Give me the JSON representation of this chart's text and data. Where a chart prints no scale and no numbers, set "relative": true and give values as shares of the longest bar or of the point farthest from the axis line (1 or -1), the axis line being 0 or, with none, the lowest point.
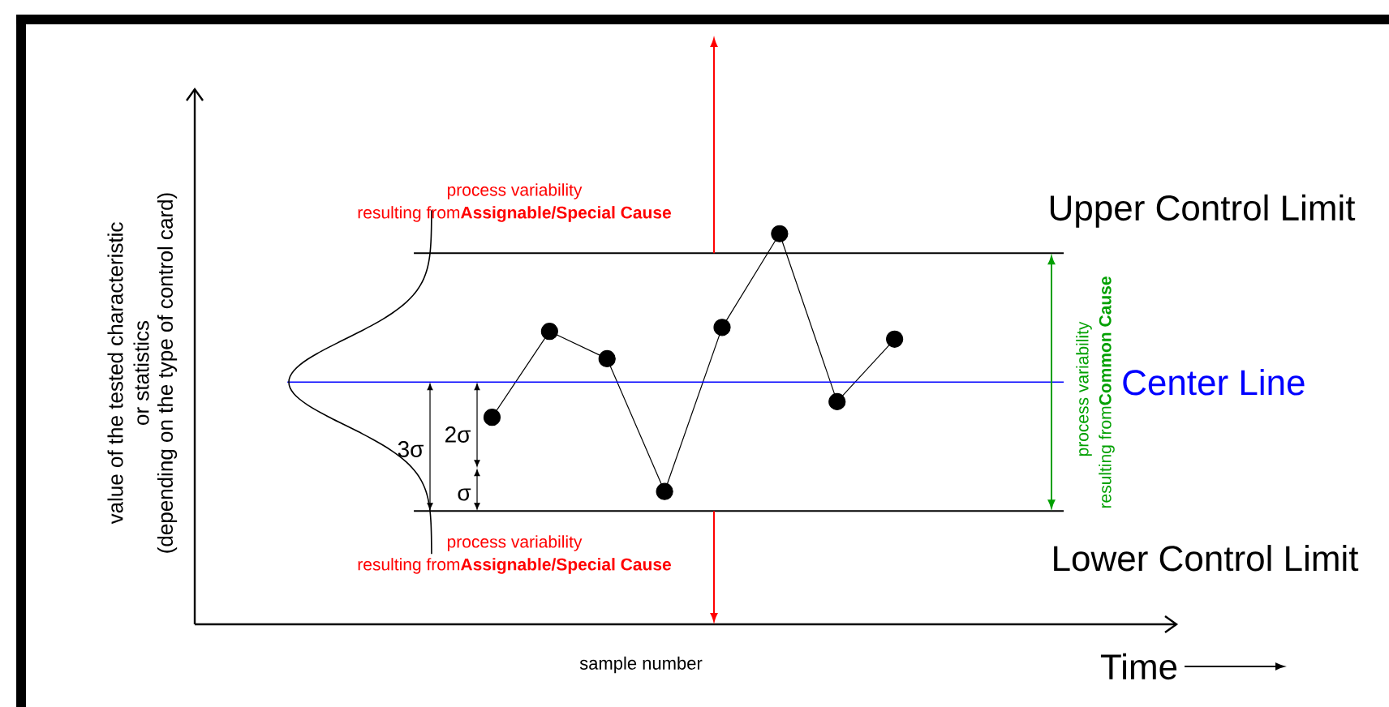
{
  "chart_data": {
    "type": "line",
    "relative": true,
    "xlabel": "sample number",
    "categories": [
      null,
      null,
      null,
      null,
      null,
      null,
      null,
      null
    ],
    "series": [
      {
        "color": "#000000",
        "values": [
          0.53,
          0.75,
          0.68,
          0.34,
          0.76,
          1,
          0.57,
          0.73
        ]
      }
    ],
    "marker": "circle",
    "line_style": "solid",
    "ref_lines": [
      {
        "axis": "y",
        "value": 0.95,
        "label": "Upper Control Limit",
        "color": "#000000"
      },
      {
        "axis": "y",
        "value": 0.62,
        "label": "Center Line",
        "color": "#0000ff"
      },
      {
        "axis": "y",
        "value": 0.29,
        "label": "Lower Control Limit",
        "color": "#000000"
      }
    ],
    "annotations": [
      "process variability",
      "resulting from**Assignable/Special Cause**",
      "process variability",
      "resulting from**Assignable/Special Cause**",
      "process variability",
      "resulting from**Common Cause**",
      "3σ",
      "2σ",
      "σ",
      "Time",
      "value of the tested characteristic",
      "or statistics",
      "(depending on the type of control card)"
    ]
  }
}
